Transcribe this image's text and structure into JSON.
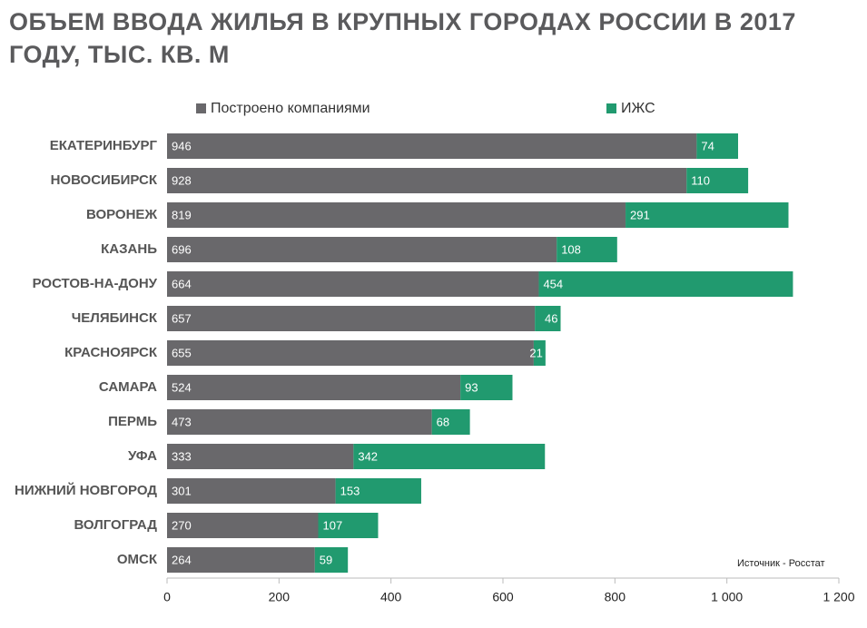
{
  "chart_data": {
    "type": "stacked-bar-horizontal",
    "title": "ОБЪЕМ ВВОДА ЖИЛЬЯ В КРУПНЫХ ГОРОДАХ РОССИИ В 2017 ГОДУ, ТЫС. КВ. М",
    "annotation": "Источник - Росстат",
    "categories": [
      "ЕКАТЕРИНБУРГ",
      "НОВОСИБИРСК",
      "ВОРОНЕЖ",
      "КАЗАНЬ",
      "РОСТОВ-НА-ДОНУ",
      "ЧЕЛЯБИНСК",
      "КРАСНОЯРСК",
      "САМАРА",
      "ПЕРМЬ",
      "УФА",
      "НИЖНИЙ НОВГОРОД",
      "ВОЛГОГРАД",
      "ОМСК"
    ],
    "series": [
      {
        "name": "Построено компаниями",
        "color": "#69686b",
        "values": [
          946,
          928,
          819,
          696,
          664,
          657,
          655,
          524,
          473,
          333,
          301,
          270,
          264
        ]
      },
      {
        "name": "ИЖС",
        "color": "#219a6f",
        "values": [
          74,
          110,
          291,
          108,
          454,
          46,
          21,
          93,
          68,
          342,
          153,
          107,
          59
        ]
      }
    ],
    "xlim": [
      0,
      1200
    ],
    "xticks": [
      0,
      200,
      400,
      600,
      800,
      {
        "value": 1000,
        "label": "1 000"
      },
      {
        "value": 1200,
        "label": "1 200"
      }
    ]
  }
}
